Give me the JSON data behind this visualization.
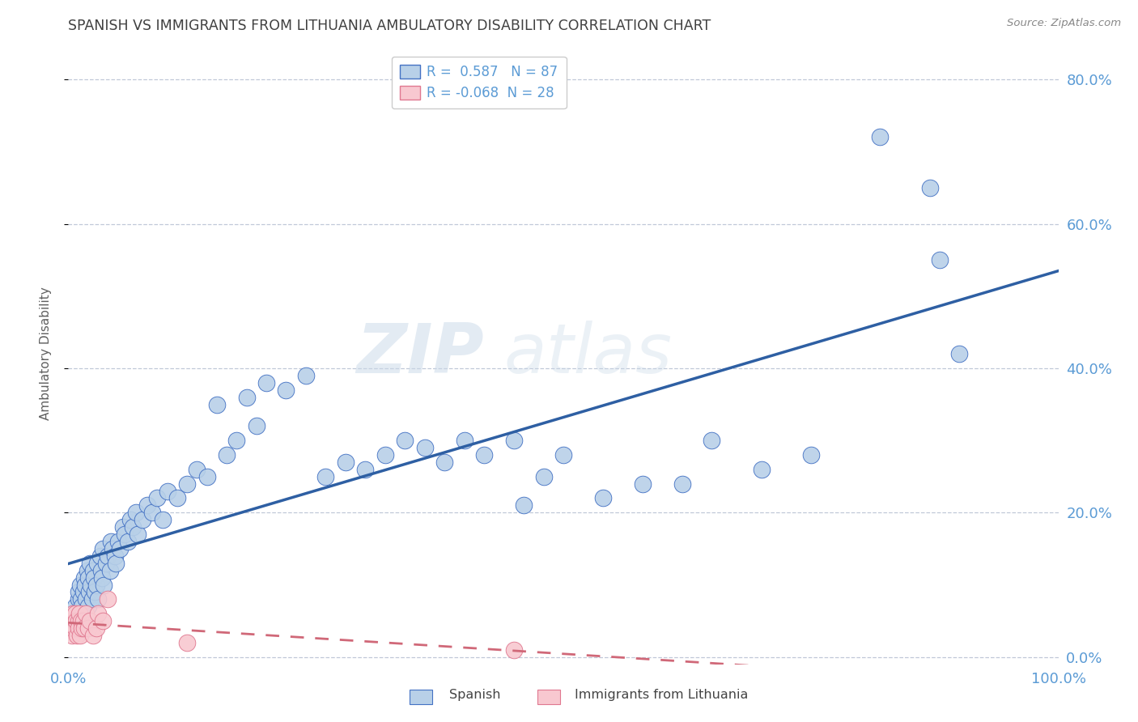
{
  "title": "SPANISH VS IMMIGRANTS FROM LITHUANIA AMBULATORY DISABILITY CORRELATION CHART",
  "source": "Source: ZipAtlas.com",
  "ylabel": "Ambulatory Disability",
  "legend_label1": "Spanish",
  "legend_label2": "Immigrants from Lithuania",
  "r1": 0.587,
  "n1": 87,
  "r2": -0.068,
  "n2": 28,
  "watermark_zip": "ZIP",
  "watermark_atlas": "atlas",
  "blue_fill": "#b8d0e8",
  "blue_edge": "#4472c4",
  "pink_fill": "#f8c8d0",
  "pink_edge": "#e07890",
  "blue_line": "#2e5fa3",
  "pink_line": "#d06878",
  "bg_color": "#ffffff",
  "grid_color": "#c0c8d8",
  "axis_color": "#5b9bd5",
  "title_color": "#404040",
  "ylabel_color": "#606060",
  "source_color": "#888888",
  "spanish_x": [
    0.005,
    0.007,
    0.008,
    0.01,
    0.01,
    0.012,
    0.013,
    0.014,
    0.015,
    0.016,
    0.017,
    0.018,
    0.019,
    0.02,
    0.02,
    0.021,
    0.022,
    0.023,
    0.024,
    0.025,
    0.026,
    0.027,
    0.028,
    0.029,
    0.03,
    0.032,
    0.033,
    0.034,
    0.035,
    0.036,
    0.038,
    0.04,
    0.042,
    0.043,
    0.045,
    0.047,
    0.048,
    0.05,
    0.052,
    0.055,
    0.057,
    0.06,
    0.063,
    0.065,
    0.068,
    0.07,
    0.075,
    0.08,
    0.085,
    0.09,
    0.095,
    0.1,
    0.11,
    0.12,
    0.13,
    0.14,
    0.15,
    0.16,
    0.17,
    0.18,
    0.19,
    0.2,
    0.22,
    0.24,
    0.26,
    0.28,
    0.3,
    0.32,
    0.34,
    0.36,
    0.38,
    0.4,
    0.42,
    0.45,
    0.46,
    0.48,
    0.5,
    0.54,
    0.58,
    0.62,
    0.65,
    0.7,
    0.75,
    0.82,
    0.87,
    0.88,
    0.9
  ],
  "spanish_y": [
    0.06,
    0.07,
    0.05,
    0.08,
    0.09,
    0.1,
    0.08,
    0.07,
    0.09,
    0.11,
    0.1,
    0.08,
    0.12,
    0.07,
    0.11,
    0.09,
    0.13,
    0.1,
    0.08,
    0.12,
    0.11,
    0.09,
    0.1,
    0.13,
    0.08,
    0.14,
    0.12,
    0.11,
    0.15,
    0.1,
    0.13,
    0.14,
    0.12,
    0.16,
    0.15,
    0.14,
    0.13,
    0.16,
    0.15,
    0.18,
    0.17,
    0.16,
    0.19,
    0.18,
    0.2,
    0.17,
    0.19,
    0.21,
    0.2,
    0.22,
    0.19,
    0.23,
    0.22,
    0.24,
    0.26,
    0.25,
    0.35,
    0.28,
    0.3,
    0.36,
    0.32,
    0.38,
    0.37,
    0.39,
    0.25,
    0.27,
    0.26,
    0.28,
    0.3,
    0.29,
    0.27,
    0.3,
    0.28,
    0.3,
    0.21,
    0.25,
    0.28,
    0.22,
    0.24,
    0.24,
    0.3,
    0.26,
    0.28,
    0.72,
    0.65,
    0.55,
    0.42
  ],
  "lithuania_x": [
    0.002,
    0.003,
    0.004,
    0.005,
    0.005,
    0.006,
    0.007,
    0.007,
    0.008,
    0.009,
    0.01,
    0.01,
    0.011,
    0.012,
    0.013,
    0.014,
    0.015,
    0.016,
    0.018,
    0.02,
    0.022,
    0.025,
    0.028,
    0.03,
    0.035,
    0.04,
    0.12,
    0.45
  ],
  "lithuania_y": [
    0.04,
    0.05,
    0.03,
    0.06,
    0.04,
    0.05,
    0.04,
    0.06,
    0.05,
    0.03,
    0.05,
    0.04,
    0.06,
    0.03,
    0.05,
    0.04,
    0.05,
    0.04,
    0.06,
    0.04,
    0.05,
    0.03,
    0.04,
    0.06,
    0.05,
    0.08,
    0.02,
    0.01
  ],
  "xlim": [
    0.0,
    1.0
  ],
  "ylim": [
    -0.01,
    0.85
  ],
  "yticks": [
    0.0,
    0.2,
    0.4,
    0.6,
    0.8
  ],
  "ytick_labels": [
    "0.0%",
    "20.0%",
    "40.0%",
    "60.0%",
    "80.0%"
  ],
  "xtick_labels": [
    "0.0%",
    "100.0%"
  ]
}
